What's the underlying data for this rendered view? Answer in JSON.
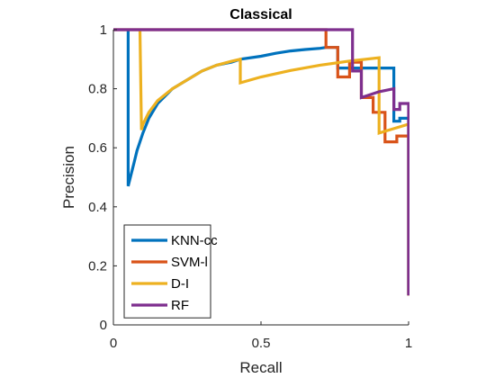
{
  "chart_data": {
    "type": "line",
    "title": "Classical",
    "xlabel": "Recall",
    "ylabel": "Precision",
    "xlim": [
      0,
      1
    ],
    "ylim": [
      0,
      1
    ],
    "xticks": [
      0,
      0.5,
      1
    ],
    "xtick_labels": [
      "0",
      "0.5",
      "1"
    ],
    "yticks": [
      0,
      0.2,
      0.4,
      0.6,
      0.8,
      1
    ],
    "ytick_labels": [
      "0",
      "0.2",
      "0.4",
      "0.6",
      "0.8",
      "1"
    ],
    "grid": false,
    "legend_position": "bottom-left",
    "series": [
      {
        "name": "KNN-cc",
        "color": "#0072BD",
        "x": [
          0.05,
          0.05,
          0.05,
          0.06,
          0.07,
          0.08,
          0.09,
          0.1,
          0.12,
          0.15,
          0.2,
          0.25,
          0.3,
          0.35,
          0.4,
          0.43,
          0.5,
          0.55,
          0.6,
          0.65,
          0.7,
          0.72,
          0.72,
          0.76,
          0.76,
          0.86,
          0.86,
          0.95,
          0.95,
          0.97,
          0.97,
          1.0,
          1.0
        ],
        "y": [
          1.0,
          1.0,
          0.47,
          0.51,
          0.55,
          0.59,
          0.62,
          0.65,
          0.7,
          0.75,
          0.8,
          0.83,
          0.86,
          0.88,
          0.89,
          0.9,
          0.91,
          0.92,
          0.928,
          0.933,
          0.937,
          0.94,
          0.94,
          0.94,
          0.87,
          0.87,
          0.87,
          0.87,
          0.69,
          0.69,
          0.7,
          0.7,
          0.1
        ]
      },
      {
        "name": "SVM-l",
        "color": "#D95319",
        "x": [
          0.0,
          0.72,
          0.72,
          0.76,
          0.76,
          0.8,
          0.8,
          0.84,
          0.84,
          0.88,
          0.88,
          0.92,
          0.92,
          0.96,
          0.96,
          1.0,
          1.0
        ],
        "y": [
          1.0,
          1.0,
          0.94,
          0.94,
          0.84,
          0.84,
          0.89,
          0.89,
          0.77,
          0.77,
          0.72,
          0.72,
          0.62,
          0.62,
          0.64,
          0.64,
          0.1
        ]
      },
      {
        "name": "D-I",
        "color": "#EDB120",
        "x": [
          0.09,
          0.09,
          0.095,
          0.1,
          0.12,
          0.15,
          0.2,
          0.25,
          0.3,
          0.35,
          0.4,
          0.43,
          0.43,
          0.5,
          0.6,
          0.7,
          0.8,
          0.9,
          0.9,
          0.95,
          1.0,
          1.0
        ],
        "y": [
          1.0,
          1.0,
          0.66,
          0.68,
          0.72,
          0.76,
          0.8,
          0.83,
          0.86,
          0.88,
          0.893,
          0.9,
          0.82,
          0.84,
          0.862,
          0.88,
          0.894,
          0.905,
          0.65,
          0.665,
          0.68,
          0.1
        ]
      },
      {
        "name": "RF",
        "color": "#7E2F8E",
        "x": [
          0.0,
          0.81,
          0.81,
          0.84,
          0.84,
          0.9,
          0.9,
          0.95,
          0.95,
          0.97,
          0.97,
          1.0,
          1.0
        ],
        "y": [
          1.0,
          1.0,
          0.86,
          0.86,
          0.77,
          0.79,
          0.79,
          0.8,
          0.73,
          0.73,
          0.75,
          0.75,
          0.1
        ]
      }
    ]
  }
}
